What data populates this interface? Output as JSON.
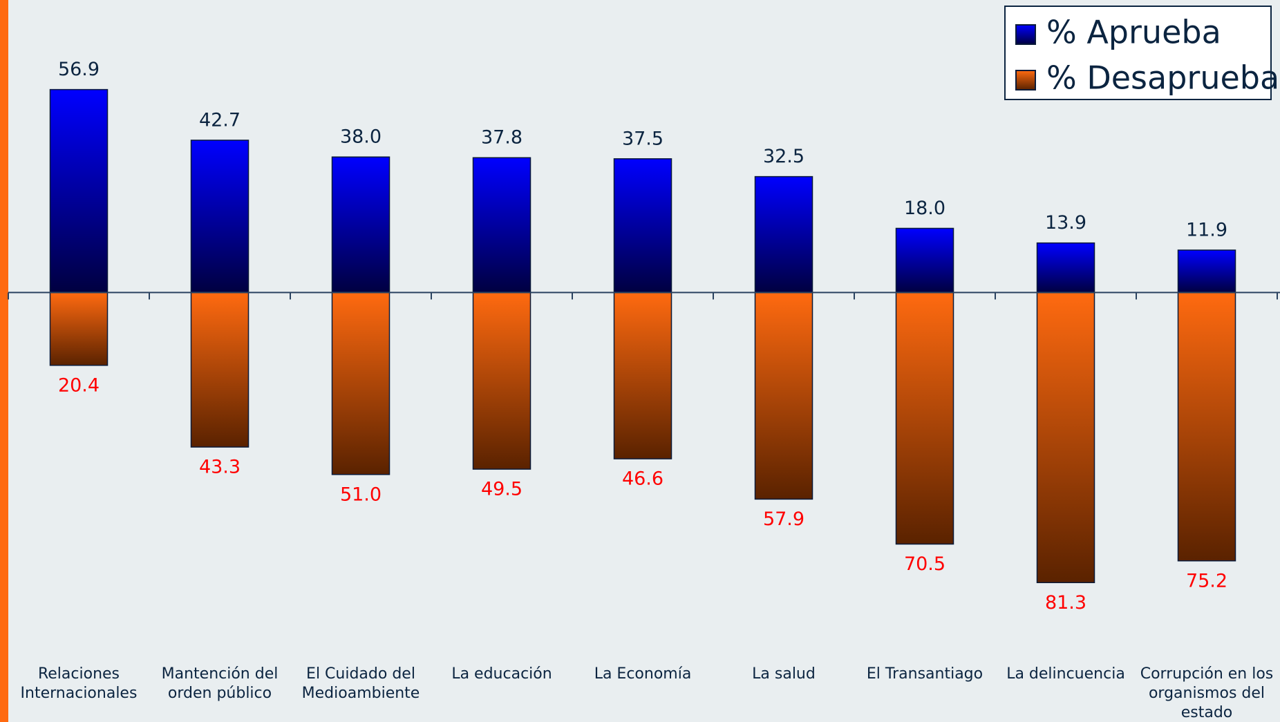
{
  "chart_data": {
    "type": "bar",
    "categories": [
      "Relaciones Internacionales",
      "Mantención del orden público",
      "El Cuidado del Medioambiente",
      "La educación",
      "La Economía",
      "La salud",
      "El Transantiago",
      "La delincuencia",
      "Corrupción en los organismos del estado"
    ],
    "series": [
      {
        "name": "% Aprueba",
        "color": "#0000ff",
        "values": [
          56.9,
          42.7,
          38.0,
          37.8,
          37.5,
          32.5,
          18.0,
          13.9,
          11.9
        ],
        "value_labels": [
          "56.9",
          "42.7",
          "38.0",
          "37.8",
          "37.5",
          "32.5",
          "18.0",
          "13.9",
          "11.9"
        ]
      },
      {
        "name": "% Desaprueba",
        "color": "#ff6a10",
        "values": [
          -20.4,
          -43.3,
          -51.0,
          -49.5,
          -46.6,
          -57.9,
          -70.5,
          -81.3,
          -75.2
        ],
        "value_labels": [
          "20.4",
          "43.3",
          "51.0",
          "49.5",
          "46.6",
          "57.9",
          "70.5",
          "81.3",
          "75.2"
        ]
      }
    ],
    "ylim": [
      -95,
      82
    ]
  }
}
